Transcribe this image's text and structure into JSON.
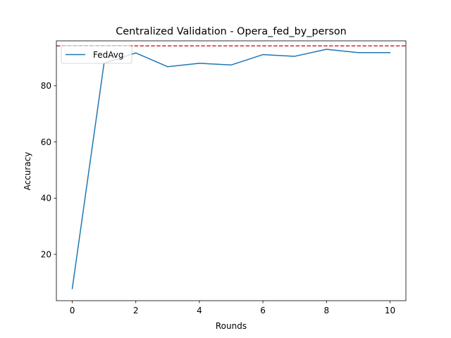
{
  "chart_data": {
    "type": "line",
    "title": "Centralized Validation - Opera_fed_by_person",
    "xlabel": "Rounds",
    "ylabel": "Accuracy",
    "xlim": [
      -0.5,
      10.5
    ],
    "ylim": [
      3.5,
      96.0
    ],
    "xticks": [
      0,
      2,
      4,
      6,
      8,
      10
    ],
    "yticks": [
      20,
      40,
      60,
      80
    ],
    "grid": false,
    "legend": {
      "position": "top-left"
    },
    "series": [
      {
        "name": "FedAvg",
        "color": "#1f77b4",
        "x": [
          0,
          1,
          2,
          3,
          4,
          5,
          6,
          7,
          8,
          9,
          10
        ],
        "y": [
          7.8,
          88.0,
          91.7,
          86.8,
          88.0,
          87.4,
          91.1,
          90.5,
          93.0,
          91.8,
          91.8
        ]
      }
    ],
    "reference_line": {
      "y": 94.2,
      "color": "#d62728",
      "style": "dashed"
    }
  }
}
